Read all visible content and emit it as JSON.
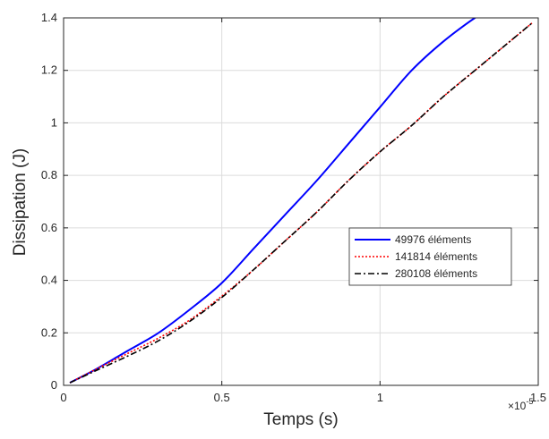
{
  "chart_data": {
    "type": "line",
    "title": "",
    "xlabel": "Temps (s)",
    "ylabel": "Dissipation (J)",
    "x_exponent_base": "×10",
    "x_exponent_power": "-5",
    "xlim": [
      0,
      1.5
    ],
    "ylim": [
      0,
      1.4
    ],
    "xticks": [
      0,
      0.5,
      1,
      1.5
    ],
    "xtick_labels": [
      "0",
      "0.5",
      "1",
      "1.5"
    ],
    "yticks": [
      0,
      0.2,
      0.4,
      0.6,
      0.8,
      1,
      1.2,
      1.4
    ],
    "ytick_labels": [
      "0",
      "0.2",
      "0.4",
      "0.6",
      "0.8",
      "1",
      "1.2",
      "1.4"
    ],
    "grid": true,
    "legend_position": "center-right",
    "series": [
      {
        "name": "49976 éléments",
        "color": "#0000ff",
        "style": "solid",
        "x": [
          0.02,
          0.1,
          0.2,
          0.3,
          0.4,
          0.5,
          0.6,
          0.7,
          0.8,
          0.9,
          1.0,
          1.1,
          1.2,
          1.3,
          1.32
        ],
        "y": [
          0.01,
          0.06,
          0.13,
          0.2,
          0.29,
          0.39,
          0.52,
          0.65,
          0.78,
          0.92,
          1.06,
          1.2,
          1.31,
          1.4,
          1.405
        ]
      },
      {
        "name": "141814 éléments",
        "color": "#ff0000",
        "style": "dotted",
        "x": [
          0.02,
          0.1,
          0.2,
          0.3,
          0.4,
          0.5,
          0.6,
          0.7,
          0.8,
          0.9,
          1.0,
          1.1,
          1.2,
          1.3,
          1.4,
          1.48
        ],
        "y": [
          0.01,
          0.06,
          0.12,
          0.18,
          0.25,
          0.34,
          0.44,
          0.55,
          0.66,
          0.78,
          0.89,
          0.99,
          1.1,
          1.2,
          1.3,
          1.38
        ]
      },
      {
        "name": "280108 éléments",
        "color": "#000000",
        "style": "dashdot",
        "x": [
          0.02,
          0.1,
          0.2,
          0.3,
          0.4,
          0.5,
          0.6,
          0.7,
          0.8,
          0.9,
          1.0,
          1.1,
          1.2,
          1.3,
          1.4,
          1.48
        ],
        "y": [
          0.01,
          0.055,
          0.11,
          0.17,
          0.245,
          0.335,
          0.44,
          0.55,
          0.66,
          0.78,
          0.89,
          0.99,
          1.1,
          1.2,
          1.3,
          1.38
        ]
      }
    ]
  }
}
